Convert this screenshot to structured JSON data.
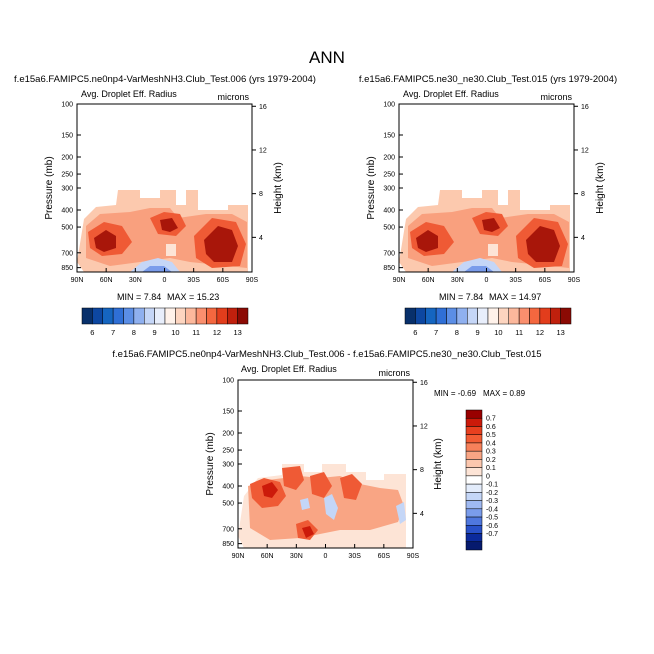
{
  "figure": {
    "title": "ANN"
  },
  "chart_data": [
    {
      "type": "heatmap",
      "title": "f.e15a6.FAMIPC5.ne0np4-VarMeshNH3.Club_Test.006 (yrs 1979-2004)",
      "left_label": "Avg. Droplet Eff. Radius",
      "units": "microns",
      "ylabel": "Pressure (mb)",
      "ylabel_right": "Height (km)",
      "x_ticks": [
        "90N",
        "60N",
        "30N",
        "0",
        "30S",
        "60S",
        "90S"
      ],
      "y_ticks": [
        "100",
        "150",
        "200",
        "250",
        "300",
        "400",
        "500",
        "700",
        "850"
      ],
      "height_ticks": [
        "16",
        "12",
        "8",
        "4"
      ],
      "min_text": "MIN =  7.84",
      "max_text": "MAX =  15.23",
      "min": 7.84,
      "max": 15.23
    },
    {
      "type": "heatmap",
      "title": "f.e15a6.FAMIPC5.ne30_ne30.Club_Test.015 (yrs 1979-2004)",
      "left_label": "Avg. Droplet Eff. Radius",
      "units": "microns",
      "ylabel": "Pressure (mb)",
      "ylabel_right": "Height (km)",
      "x_ticks": [
        "90N",
        "60N",
        "30N",
        "0",
        "30S",
        "60S",
        "90S"
      ],
      "y_ticks": [
        "100",
        "150",
        "200",
        "250",
        "300",
        "400",
        "500",
        "700",
        "850"
      ],
      "height_ticks": [
        "16",
        "12",
        "8",
        "4"
      ],
      "min_text": "MIN =  7.84",
      "max_text": "MAX =  14.97",
      "min": 7.84,
      "max": 14.97
    },
    {
      "type": "heatmap",
      "title": "f.e15a6.FAMIPC5.ne0np4-VarMeshNH3.Club_Test.006 - f.e15a6.FAMIPC5.ne30_ne30.Club_Test.015",
      "left_label": "Avg. Droplet Eff. Radius",
      "units": "microns",
      "ylabel": "Pressure (mb)",
      "ylabel_right": "Height (km)",
      "x_ticks": [
        "90N",
        "60N",
        "30N",
        "0",
        "30S",
        "60S",
        "90S"
      ],
      "y_ticks": [
        "100",
        "150",
        "200",
        "250",
        "300",
        "400",
        "500",
        "700",
        "850"
      ],
      "height_ticks": [
        "16",
        "12",
        "8",
        "4"
      ],
      "min_text": "MIN =  -0.69",
      "max_text": "MAX =  0.89",
      "min": -0.69,
      "max": 0.89
    }
  ],
  "colorbar_top": {
    "labels": [
      "6",
      "7",
      "8",
      "9",
      "10",
      "11",
      "12",
      "13"
    ],
    "colors": [
      "#08306b",
      "#0d47a1",
      "#1565c0",
      "#2f6fd6",
      "#5b8ee6",
      "#8fb0ef",
      "#c5d6f7",
      "#e8eefb",
      "#fff2ea",
      "#fdd5c0",
      "#fcb89c",
      "#fa8f6e",
      "#f4673f",
      "#e23d1c",
      "#c0200d",
      "#8b0a04"
    ]
  },
  "colorbar_diff": {
    "labels": [
      "0.7",
      "0.6",
      "0.5",
      "0.4",
      "0.3",
      "0.2",
      "0.1",
      "0",
      "-0.1",
      "-0.2",
      "-0.3",
      "-0.4",
      "-0.5",
      "-0.6",
      "-0.7"
    ],
    "colors": [
      "#990000",
      "#cc1a0a",
      "#e8401f",
      "#f25c34",
      "#f7815a",
      "#f9a584",
      "#fcc7ae",
      "#fde4d6",
      "#ffffff",
      "#e3ecfb",
      "#c4d6f7",
      "#9fb9f1",
      "#7a9ceb",
      "#4f77de",
      "#2850c8",
      "#0b2a9c",
      "#061a6e"
    ]
  }
}
